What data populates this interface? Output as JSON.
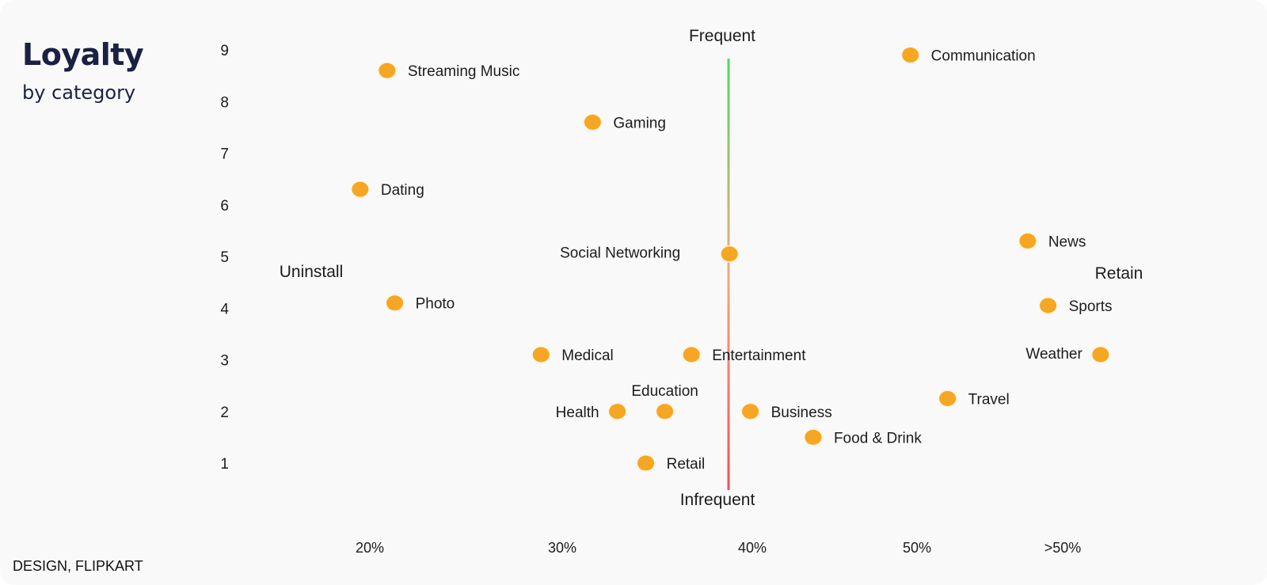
{
  "header": {
    "title": "Loyalty",
    "subtitle": "by category"
  },
  "footer": {
    "credit": "DESIGN, FLIPKART"
  },
  "colors": {
    "point": "#f5a623",
    "point_stroke": "#fff3dc",
    "axis_low": "#f04e5c",
    "axis_mid": "#f7a77a",
    "axis_high": "#4cd964",
    "background": "#f9f9f9"
  },
  "chart_data": {
    "type": "scatter",
    "title": "Loyalty",
    "subtitle": "by category",
    "x_ticks": [
      "20%",
      "30%",
      "40%",
      "50%",
      ">50%"
    ],
    "y_ticks": [
      1,
      2,
      3,
      4,
      5,
      6,
      7,
      8,
      9
    ],
    "ylim": [
      0.5,
      9.4
    ],
    "grid": false,
    "quadrant_labels": {
      "top": "Frequent",
      "bottom": "Infrequent",
      "left": "Uninstall",
      "right": "Retain"
    },
    "points": [
      {
        "label": "Communication",
        "x": 49.6,
        "y": 8.9,
        "label_side": "right"
      },
      {
        "label": "Streaming Music",
        "x": 20.9,
        "y": 8.6,
        "label_side": "right"
      },
      {
        "label": "Gaming",
        "x": 31.6,
        "y": 7.6,
        "label_side": "right"
      },
      {
        "label": "Dating",
        "x": 19.5,
        "y": 6.3,
        "label_side": "right"
      },
      {
        "label": "News",
        "x": 57.6,
        "y": 5.3,
        "label_side": "right"
      },
      {
        "label": "Social Networking",
        "x": 38.8,
        "y": 5.05,
        "label_side": "left-up"
      },
      {
        "label": "Photo",
        "x": 21.3,
        "y": 4.1,
        "label_side": "right"
      },
      {
        "label": "Sports",
        "x": 59.0,
        "y": 4.05,
        "label_side": "right"
      },
      {
        "label": "Medical",
        "x": 28.9,
        "y": 3.1,
        "label_side": "right"
      },
      {
        "label": "Entertainment",
        "x": 36.8,
        "y": 3.1,
        "label_side": "right"
      },
      {
        "label": "Weather",
        "x": 62.6,
        "y": 3.1,
        "label_side": "left"
      },
      {
        "label": "Travel",
        "x": 52.1,
        "y": 2.25,
        "label_side": "right"
      },
      {
        "label": "Education",
        "x": 35.4,
        "y": 2.0,
        "label_side": "above"
      },
      {
        "label": "Health",
        "x": 32.9,
        "y": 2.0,
        "label_side": "left"
      },
      {
        "label": "Business",
        "x": 39.9,
        "y": 2.0,
        "label_side": "right"
      },
      {
        "label": "Food & Drink",
        "x": 43.7,
        "y": 1.5,
        "label_side": "right"
      },
      {
        "label": "Retail",
        "x": 34.4,
        "y": 1.0,
        "label_side": "right"
      }
    ]
  }
}
